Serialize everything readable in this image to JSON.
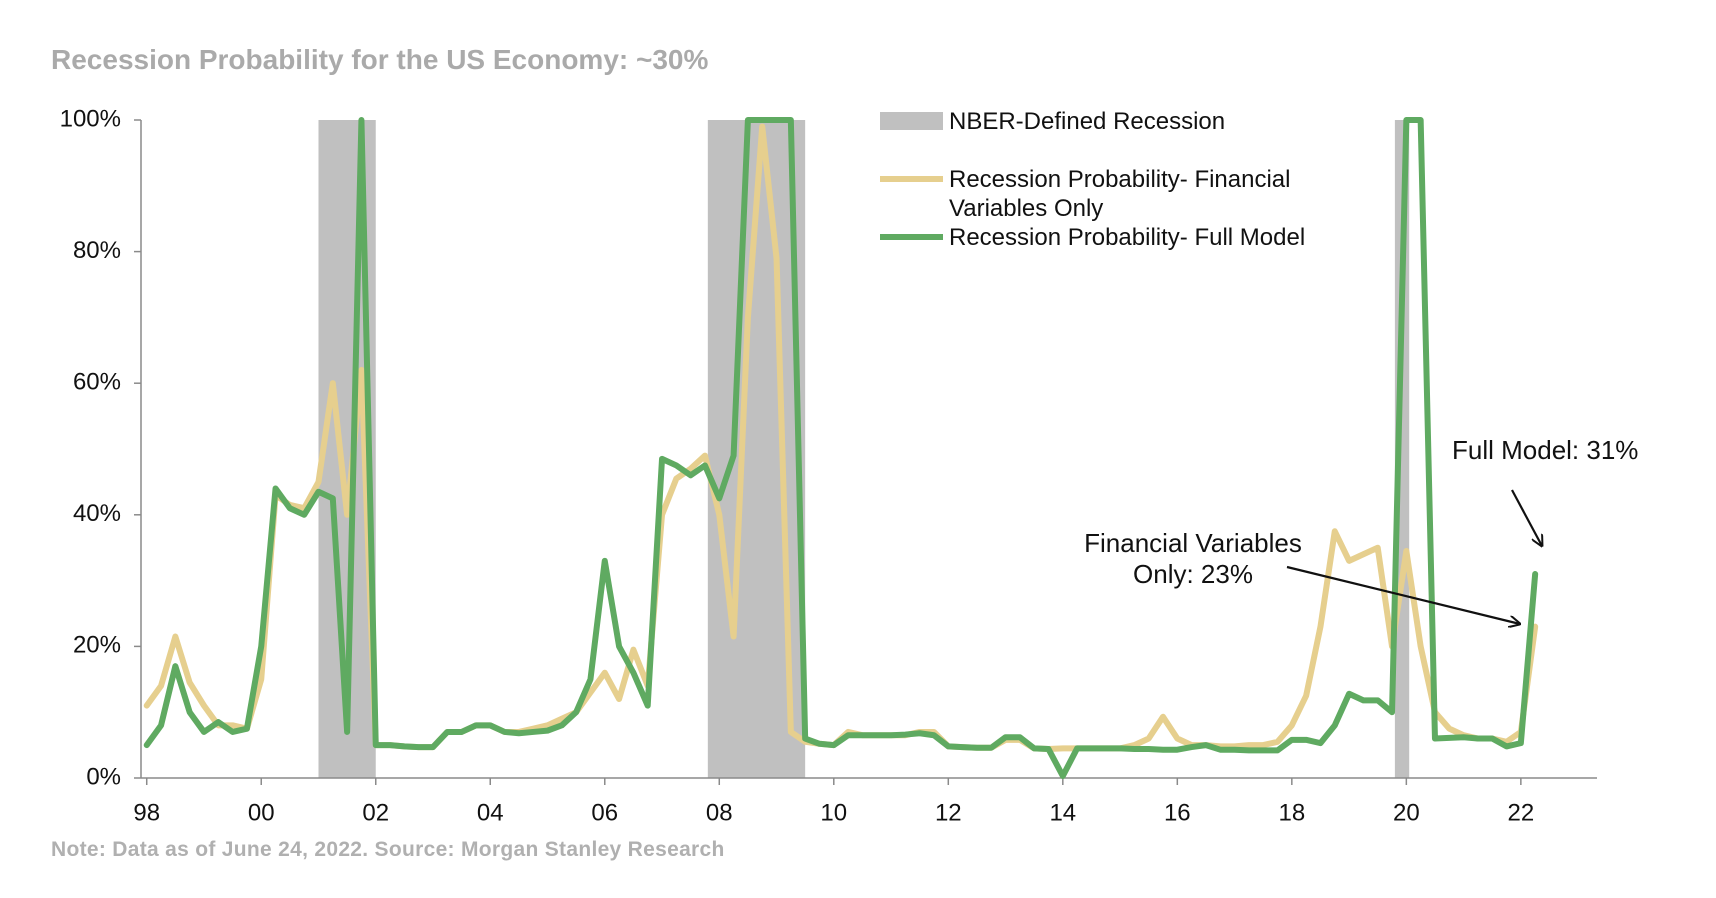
{
  "chart_data": {
    "type": "line",
    "title": "Recession Probability for the US Economy: ~30%",
    "note": "Note: Data as of June 24, 2022. Source: Morgan Stanley Research",
    "x": [
      1998,
      1998.25,
      1998.5,
      1998.75,
      1999,
      1999.25,
      1999.5,
      1999.75,
      2000,
      2000.25,
      2000.5,
      2000.75,
      2001,
      2001.25,
      2001.5,
      2001.75,
      2002,
      2002.25,
      2002.5,
      2002.75,
      2003,
      2003.25,
      2003.5,
      2003.75,
      2004,
      2004.25,
      2004.5,
      2004.75,
      2005,
      2005.25,
      2005.5,
      2005.75,
      2006,
      2006.25,
      2006.5,
      2006.75,
      2007,
      2007.25,
      2007.5,
      2007.75,
      2008,
      2008.25,
      2008.5,
      2008.75,
      2009,
      2009.25,
      2009.5,
      2009.75,
      2010,
      2010.25,
      2010.5,
      2010.75,
      2011,
      2011.25,
      2011.5,
      2011.75,
      2012,
      2012.25,
      2012.5,
      2012.75,
      2013,
      2013.25,
      2013.5,
      2013.75,
      2014,
      2014.25,
      2014.5,
      2014.75,
      2015,
      2015.25,
      2015.5,
      2015.75,
      2016,
      2016.25,
      2016.5,
      2016.75,
      2017,
      2017.25,
      2017.5,
      2017.75,
      2018,
      2018.25,
      2018.5,
      2018.75,
      2019,
      2019.25,
      2019.5,
      2019.75,
      2020,
      2020.25,
      2020.5,
      2020.75,
      2021,
      2021.25,
      2021.5,
      2021.75,
      2022,
      2022.25
    ],
    "series": [
      {
        "name": "Recession Probability- Financial Variables Only",
        "color": "#e6cf8e",
        "values": [
          11,
          14,
          21.5,
          14.5,
          11,
          8,
          8,
          7.5,
          15,
          43,
          41.5,
          41,
          45,
          60,
          40,
          62,
          5,
          5,
          4.8,
          4.7,
          4.7,
          7,
          7,
          8,
          8,
          7,
          7,
          7.5,
          8,
          9,
          10,
          13,
          16,
          12,
          19.5,
          14,
          40,
          45.5,
          47,
          49,
          40,
          21.5,
          70,
          99,
          79,
          7,
          5.5,
          5.2,
          5,
          7,
          6.5,
          6.5,
          6.5,
          6.5,
          7,
          7,
          4.8,
          4.7,
          4.6,
          4.6,
          5.8,
          5.8,
          4.5,
          4.4,
          4.5,
          4.5,
          4.5,
          4.5,
          4.5,
          5,
          6,
          9.3,
          6,
          5,
          5,
          4.8,
          4.8,
          5,
          5,
          5.5,
          8,
          12.5,
          23,
          37.5,
          33,
          34,
          35,
          20,
          34.5,
          20,
          10,
          7.5,
          6.5,
          6,
          6,
          5.5,
          7,
          23
        ]
      },
      {
        "name": "Recession Probability- Full Model",
        "color": "#5faa61",
        "values": [
          5,
          8,
          17,
          10,
          7,
          8.5,
          7,
          7.5,
          20,
          44,
          41,
          40,
          43.5,
          42.5,
          7,
          100,
          5,
          5,
          4.8,
          4.7,
          4.7,
          7,
          7,
          8,
          8,
          7,
          6.8,
          7,
          7.2,
          8,
          10,
          15,
          33,
          20,
          16,
          11,
          48.5,
          47.5,
          46,
          47.5,
          42.5,
          49,
          100,
          100,
          100,
          100,
          6,
          5.2,
          5,
          6.5,
          6.5,
          6.5,
          6.5,
          6.6,
          6.8,
          6.5,
          4.8,
          4.7,
          4.6,
          4.6,
          6.2,
          6.2,
          4.5,
          4.4,
          0.3,
          4.5,
          4.5,
          4.5,
          4.5,
          4.4,
          4.4,
          4.3,
          4.3,
          4.7,
          5,
          4.3,
          4.3,
          4.2,
          4.2,
          4.2,
          5.8,
          5.8,
          5.3,
          8,
          12.8,
          11.8,
          11.8,
          10,
          100,
          100,
          6,
          6.1,
          6.2,
          6,
          6,
          4.8,
          5.3,
          31
        ]
      }
    ],
    "recessions": {
      "name": "NBER-Defined Recession",
      "color": "#c0c0c0",
      "periods": [
        [
          2001.0,
          2002.0
        ],
        [
          2007.8,
          2009.5
        ],
        [
          2019.8,
          2020.05
        ]
      ]
    },
    "annotations": [
      {
        "text": "Full Model: 31%"
      },
      {
        "text": "Financial Variables Only: 23%"
      }
    ],
    "xlim": [
      1997.9,
      2023.33
    ],
    "xticks": [
      {
        "value": 1998,
        "label": "98"
      },
      {
        "value": 2000,
        "label": "00"
      },
      {
        "value": 2002,
        "label": "02"
      },
      {
        "value": 2004,
        "label": "04"
      },
      {
        "value": 2006,
        "label": "06"
      },
      {
        "value": 2008,
        "label": "08"
      },
      {
        "value": 2010,
        "label": "10"
      },
      {
        "value": 2012,
        "label": "12"
      },
      {
        "value": 2014,
        "label": "14"
      },
      {
        "value": 2016,
        "label": "16"
      },
      {
        "value": 2018,
        "label": "18"
      },
      {
        "value": 2020,
        "label": "20"
      },
      {
        "value": 2022,
        "label": "22"
      }
    ],
    "ylim": [
      0,
      100
    ],
    "yticks": [
      {
        "value": 0,
        "label": "0%"
      },
      {
        "value": 20,
        "label": "20%"
      },
      {
        "value": 40,
        "label": "40%"
      },
      {
        "value": 60,
        "label": "60%"
      },
      {
        "value": 80,
        "label": "80%"
      },
      {
        "value": 100,
        "label": "100%"
      }
    ]
  }
}
